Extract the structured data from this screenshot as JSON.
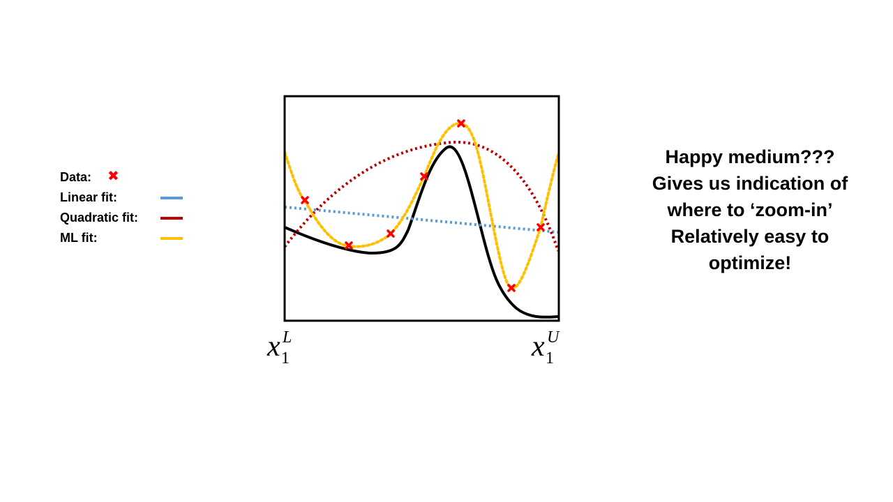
{
  "legend": {
    "items": [
      {
        "label": "Data:",
        "kind": "marker",
        "glyph": "✖",
        "color": "#ff0000"
      },
      {
        "label": "Linear fit:",
        "kind": "line",
        "color": "#5b9bd5"
      },
      {
        "label": "Quadratic fit:",
        "kind": "line",
        "color": "#c00000"
      },
      {
        "label": "ML fit:",
        "kind": "line",
        "color": "#ffc000"
      }
    ]
  },
  "axis": {
    "lower_label": {
      "base": "x",
      "subscript": "1",
      "superscript": "L"
    },
    "upper_label": {
      "base": "x",
      "subscript": "1",
      "superscript": "U"
    }
  },
  "colors": {
    "true_function": "#000000",
    "data": "#ff0000",
    "linear": "#5b9bd5",
    "quadratic": "#c00000",
    "ml": "#ffc000",
    "frame": "#000000"
  },
  "notes": {
    "lines": [
      "Happy medium???",
      "Gives us indication of",
      "where to ‘zoom-in’",
      "Relatively easy to",
      "optimize!"
    ]
  }
}
